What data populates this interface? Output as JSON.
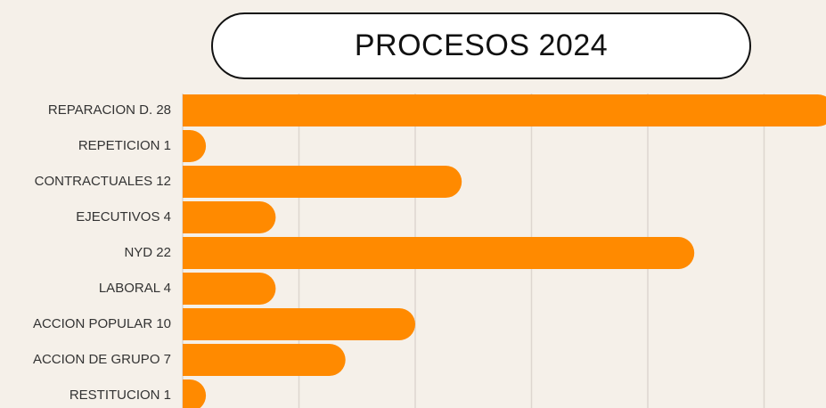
{
  "chart_data": {
    "type": "bar",
    "orientation": "horizontal",
    "title": "PROCESOS 2024",
    "categories": [
      "REPARACION D. 28",
      "REPETICION 1",
      "CONTRACTUALES 12",
      "EJECUTIVOS 4",
      "NYD 22",
      "LABORAL 4",
      "ACCION POPULAR 10",
      "ACCION DE GRUPO 7",
      "RESTITUCION 1"
    ],
    "values": [
      28,
      1,
      12,
      4,
      22,
      4,
      10,
      7,
      1
    ],
    "color": "#ff8a00",
    "xlim": [
      0,
      30
    ],
    "xticks": [
      0,
      5,
      10,
      15,
      20,
      25
    ],
    "grid": true
  }
}
